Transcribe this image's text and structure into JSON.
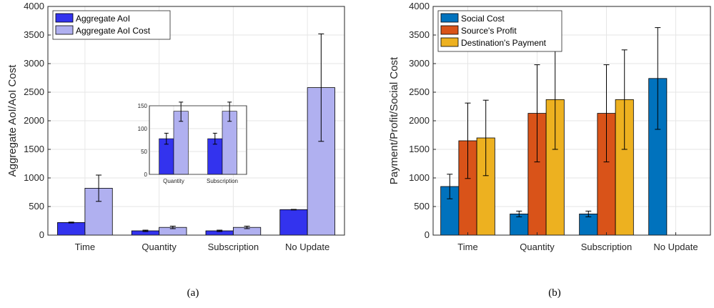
{
  "chart_data": [
    {
      "type": "bar",
      "panel": "(a)",
      "categories": [
        "Time",
        "Quantity",
        "Subscription",
        "No Update"
      ],
      "ylabel": "Aggregate AoI/AoI Cost",
      "ylim": [
        0,
        4000
      ],
      "yticks": [
        0,
        500,
        1000,
        1500,
        2000,
        2500,
        3000,
        3500,
        4000
      ],
      "grid": true,
      "legend_position": "top-left",
      "series": [
        {
          "name": "Aggregate AoI",
          "color": "#3333ee",
          "values": [
            220,
            75,
            75,
            445
          ],
          "err": [
            8,
            12,
            12,
            5
          ]
        },
        {
          "name": "Aggregate AoI Cost",
          "color": "#b0b0f0",
          "values": [
            820,
            135,
            135,
            2580
          ],
          "err": [
            230,
            22,
            22,
            940
          ]
        }
      ],
      "inset": {
        "categories": [
          "Quantity",
          "Subscription"
        ],
        "ylim": [
          0,
          150
        ],
        "yticks": [
          0,
          50,
          100,
          150
        ],
        "series_values": [
          [
            78,
            78
          ],
          [
            138,
            138
          ]
        ],
        "series_err": [
          [
            12,
            12
          ],
          [
            22,
            22
          ]
        ]
      }
    },
    {
      "type": "bar",
      "panel": "(b)",
      "categories": [
        "Time",
        "Quantity",
        "Subscription",
        "No Update"
      ],
      "ylabel": "Payment/Profit/Social Cost",
      "ylim": [
        0,
        4000
      ],
      "yticks": [
        0,
        500,
        1000,
        1500,
        2000,
        2500,
        3000,
        3500,
        4000
      ],
      "grid": true,
      "legend_position": "top-left",
      "series": [
        {
          "name": "Social Cost",
          "color": "#0072bd",
          "values": [
            850,
            370,
            370,
            2740
          ],
          "err": [
            215,
            50,
            50,
            890
          ]
        },
        {
          "name": "Source's Profit",
          "color": "#d95319",
          "values": [
            1650,
            2130,
            2130,
            0
          ],
          "err": [
            660,
            850,
            850,
            0
          ]
        },
        {
          "name": "Destination's Payment",
          "color": "#edb120",
          "values": [
            1700,
            2370,
            2370,
            0
          ],
          "err": [
            660,
            870,
            870,
            0
          ]
        }
      ]
    }
  ]
}
